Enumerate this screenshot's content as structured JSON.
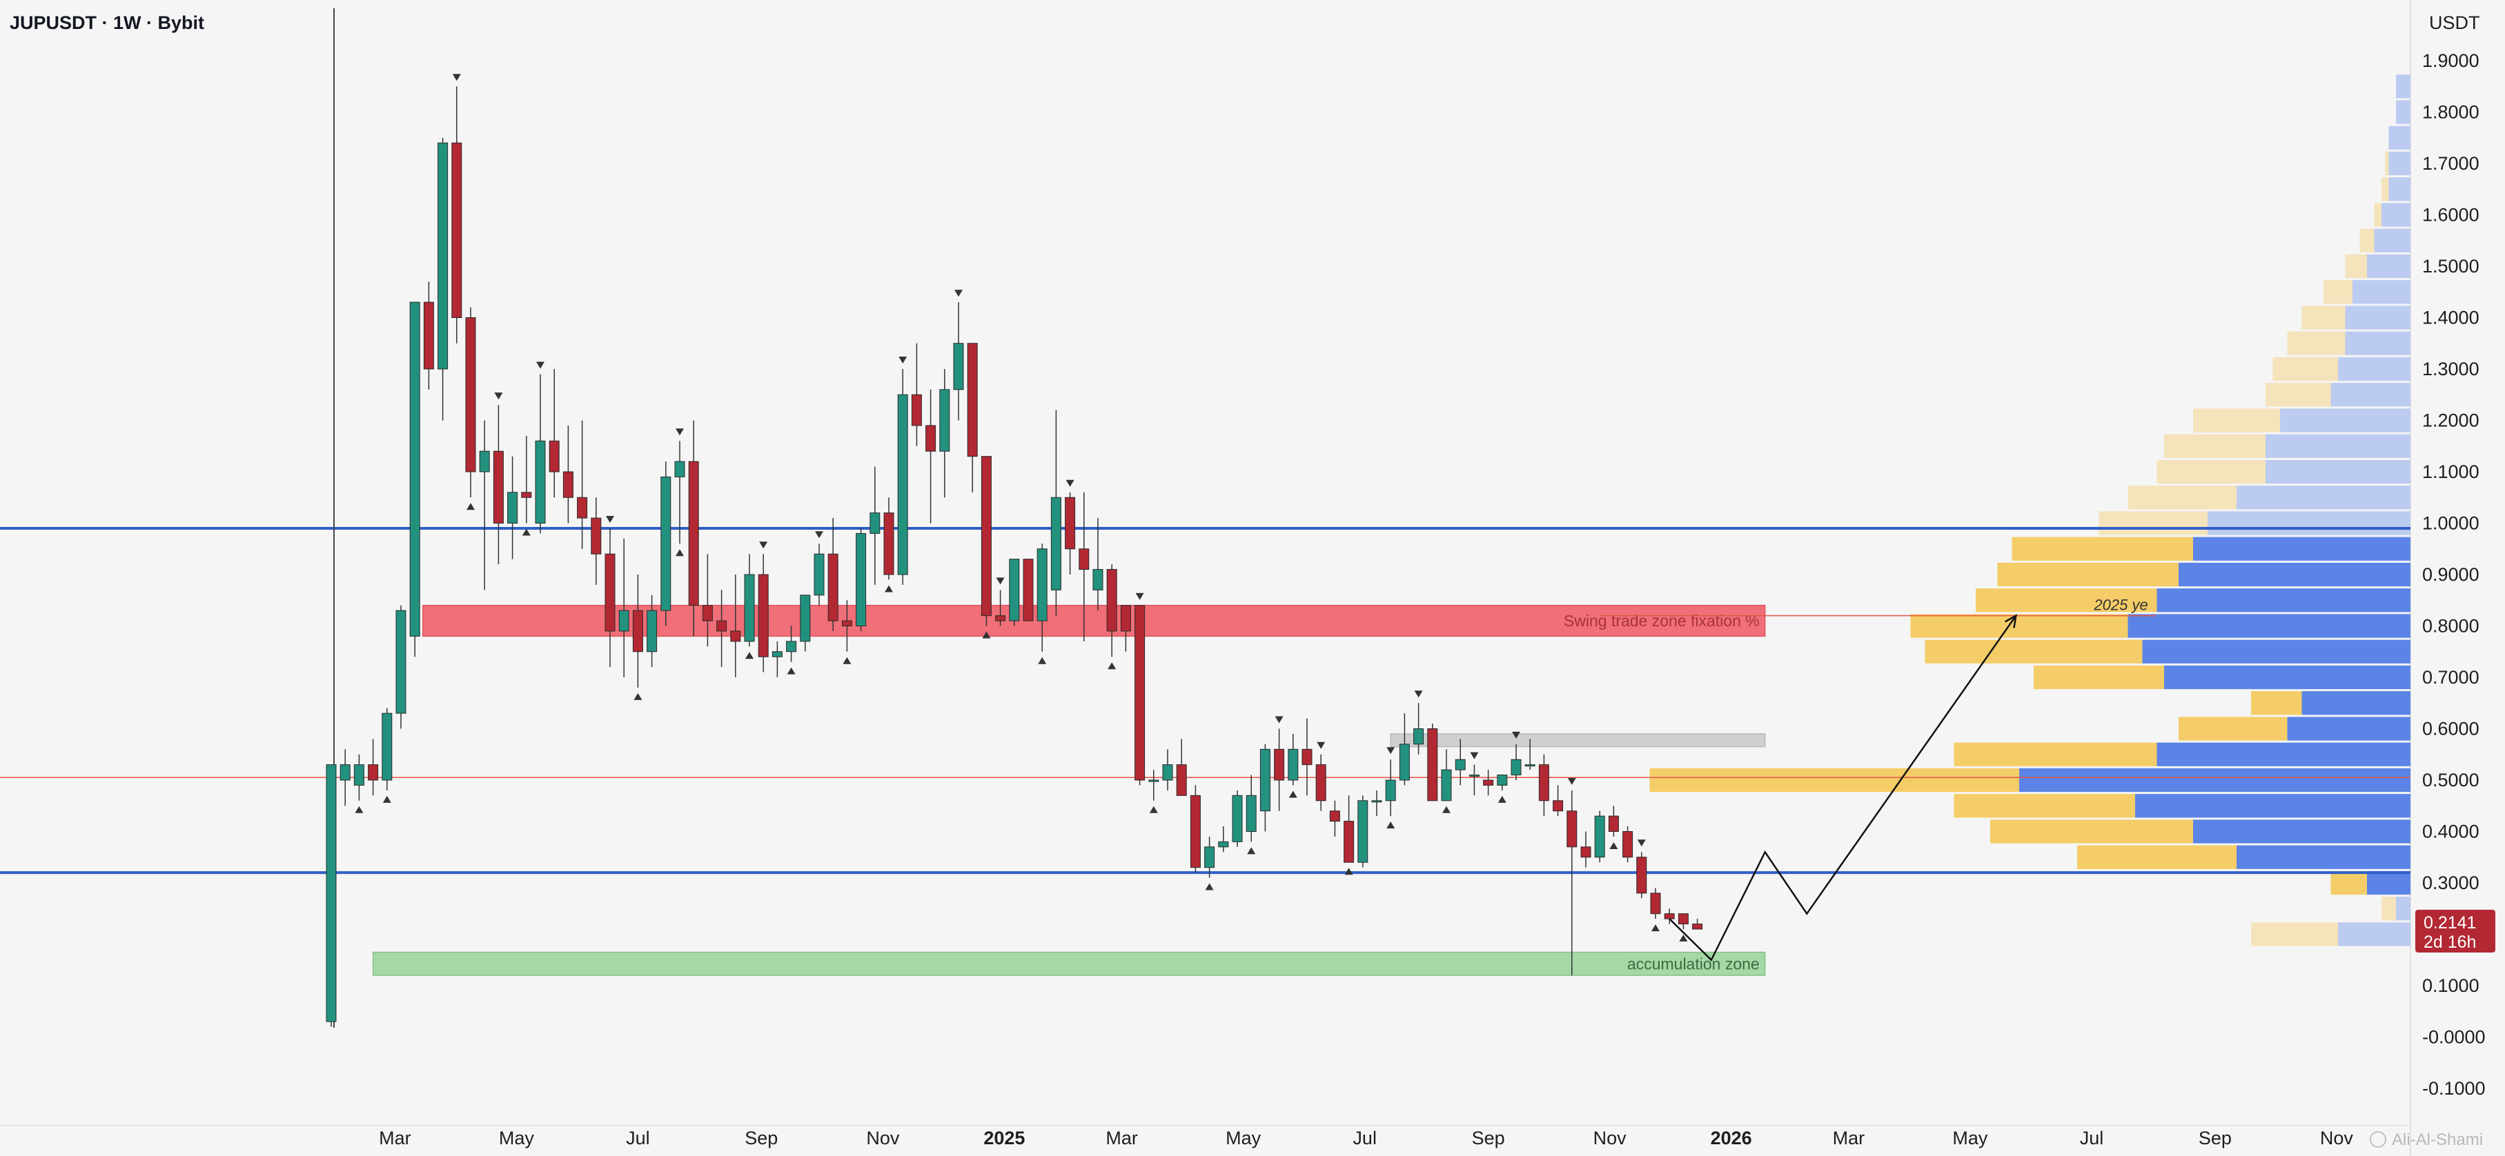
{
  "header": {
    "title": "JUPUSDT · 1W · Bybit",
    "currency": "USDT"
  },
  "colors": {
    "bull": "#22927f",
    "bear": "#b22833",
    "support_line": "#2f5fc9",
    "mid_line": "#e45345",
    "red_zone": "#f06f78",
    "green_zone": "#a4d8a6",
    "gray_zone": "#cfcfd2",
    "vp_yellow": "#f5cd68",
    "vp_yellow_light": "#f5e3bb",
    "vp_blue": "#5b84e6",
    "vp_blue_light": "#bccbf0",
    "price_tag": "#b22833"
  },
  "chart_data": {
    "type": "candlestick",
    "symbol": "JUPUSDT",
    "timeframe": "1W",
    "exchange": "Bybit",
    "x_axis": {
      "start": "2024-01-29",
      "end": "2026-11-30",
      "tick_labels": [
        {
          "label": "Mar",
          "date": "2024-03-01",
          "bold": false
        },
        {
          "label": "May",
          "date": "2024-05-01",
          "bold": false
        },
        {
          "label": "Jul",
          "date": "2024-07-01",
          "bold": false
        },
        {
          "label": "Sep",
          "date": "2024-09-01",
          "bold": false
        },
        {
          "label": "Nov",
          "date": "2024-11-01",
          "bold": false
        },
        {
          "label": "2025",
          "date": "2025-01-01",
          "bold": true
        },
        {
          "label": "Mar",
          "date": "2025-03-01",
          "bold": false
        },
        {
          "label": "May",
          "date": "2025-05-01",
          "bold": false
        },
        {
          "label": "Jul",
          "date": "2025-07-01",
          "bold": false
        },
        {
          "label": "Sep",
          "date": "2025-09-01",
          "bold": false
        },
        {
          "label": "Nov",
          "date": "2025-11-01",
          "bold": false
        },
        {
          "label": "2026",
          "date": "2026-01-01",
          "bold": true
        },
        {
          "label": "Mar",
          "date": "2026-03-01",
          "bold": false
        },
        {
          "label": "May",
          "date": "2026-05-01",
          "bold": false
        },
        {
          "label": "Jul",
          "date": "2026-07-01",
          "bold": false
        },
        {
          "label": "Sep",
          "date": "2026-09-01",
          "bold": false
        },
        {
          "label": "Nov",
          "date": "2026-11-01",
          "bold": false
        }
      ]
    },
    "y_axis": {
      "unit": "USDT",
      "range": [
        -0.12,
        2.05
      ],
      "ticks": [
        "1.9000",
        "1.8000",
        "1.7000",
        "1.6000",
        "1.5000",
        "1.4000",
        "1.3000",
        "1.2000",
        "1.1000",
        "1.0000",
        "0.9000",
        "0.8000",
        "0.7000",
        "0.6000",
        "0.5000",
        "0.4000",
        "0.3000",
        "0.2000",
        "0.1000",
        "-0.0000",
        "-0.1000"
      ]
    },
    "candles": [
      {
        "o": 0.03,
        "h": 0.53,
        "l": 0.02,
        "c": 0.53
      },
      {
        "o": 0.5,
        "h": 0.56,
        "l": 0.45,
        "c": 0.53
      },
      {
        "o": 0.49,
        "h": 0.55,
        "l": 0.46,
        "c": 0.53
      },
      {
        "o": 0.53,
        "h": 0.58,
        "l": 0.47,
        "c": 0.5
      },
      {
        "o": 0.5,
        "h": 0.64,
        "l": 0.48,
        "c": 0.63
      },
      {
        "o": 0.63,
        "h": 0.84,
        "l": 0.6,
        "c": 0.83
      },
      {
        "o": 0.78,
        "h": 1.43,
        "l": 0.74,
        "c": 1.43
      },
      {
        "o": 1.43,
        "h": 1.47,
        "l": 1.26,
        "c": 1.3
      },
      {
        "o": 1.3,
        "h": 1.75,
        "l": 1.2,
        "c": 1.74
      },
      {
        "o": 1.74,
        "h": 1.85,
        "l": 1.35,
        "c": 1.4
      },
      {
        "o": 1.4,
        "h": 1.42,
        "l": 1.05,
        "c": 1.1
      },
      {
        "o": 1.1,
        "h": 1.2,
        "l": 0.87,
        "c": 1.14
      },
      {
        "o": 1.14,
        "h": 1.23,
        "l": 0.92,
        "c": 1.0
      },
      {
        "o": 1.0,
        "h": 1.13,
        "l": 0.93,
        "c": 1.06
      },
      {
        "o": 1.06,
        "h": 1.17,
        "l": 1.0,
        "c": 1.05
      },
      {
        "o": 1.0,
        "h": 1.29,
        "l": 0.98,
        "c": 1.16
      },
      {
        "o": 1.16,
        "h": 1.3,
        "l": 1.05,
        "c": 1.1
      },
      {
        "o": 1.1,
        "h": 1.19,
        "l": 1.0,
        "c": 1.05
      },
      {
        "o": 1.05,
        "h": 1.2,
        "l": 0.95,
        "c": 1.01
      },
      {
        "o": 1.01,
        "h": 1.05,
        "l": 0.88,
        "c": 0.94
      },
      {
        "o": 0.94,
        "h": 0.99,
        "l": 0.72,
        "c": 0.79
      },
      {
        "o": 0.79,
        "h": 0.97,
        "l": 0.7,
        "c": 0.83
      },
      {
        "o": 0.83,
        "h": 0.9,
        "l": 0.68,
        "c": 0.75
      },
      {
        "o": 0.75,
        "h": 0.86,
        "l": 0.72,
        "c": 0.83
      },
      {
        "o": 0.83,
        "h": 1.12,
        "l": 0.8,
        "c": 1.09
      },
      {
        "o": 1.09,
        "h": 1.16,
        "l": 0.96,
        "c": 1.12
      },
      {
        "o": 1.12,
        "h": 1.2,
        "l": 0.78,
        "c": 0.84
      },
      {
        "o": 0.84,
        "h": 0.94,
        "l": 0.76,
        "c": 0.81
      },
      {
        "o": 0.81,
        "h": 0.87,
        "l": 0.72,
        "c": 0.79
      },
      {
        "o": 0.79,
        "h": 0.9,
        "l": 0.7,
        "c": 0.77
      },
      {
        "o": 0.77,
        "h": 0.94,
        "l": 0.76,
        "c": 0.9
      },
      {
        "o": 0.9,
        "h": 0.94,
        "l": 0.71,
        "c": 0.74
      },
      {
        "o": 0.74,
        "h": 0.77,
        "l": 0.7,
        "c": 0.75
      },
      {
        "o": 0.75,
        "h": 0.8,
        "l": 0.73,
        "c": 0.77
      },
      {
        "o": 0.77,
        "h": 0.86,
        "l": 0.75,
        "c": 0.86
      },
      {
        "o": 0.86,
        "h": 0.96,
        "l": 0.84,
        "c": 0.94
      },
      {
        "o": 0.94,
        "h": 1.01,
        "l": 0.79,
        "c": 0.81
      },
      {
        "o": 0.81,
        "h": 0.85,
        "l": 0.75,
        "c": 0.8
      },
      {
        "o": 0.8,
        "h": 0.99,
        "l": 0.79,
        "c": 0.98
      },
      {
        "o": 0.98,
        "h": 1.11,
        "l": 0.88,
        "c": 1.02
      },
      {
        "o": 1.02,
        "h": 1.05,
        "l": 0.89,
        "c": 0.9
      },
      {
        "o": 0.9,
        "h": 1.3,
        "l": 0.88,
        "c": 1.25
      },
      {
        "o": 1.25,
        "h": 1.35,
        "l": 1.15,
        "c": 1.19
      },
      {
        "o": 1.19,
        "h": 1.26,
        "l": 1.0,
        "c": 1.14
      },
      {
        "o": 1.14,
        "h": 1.3,
        "l": 1.05,
        "c": 1.26
      },
      {
        "o": 1.26,
        "h": 1.43,
        "l": 1.2,
        "c": 1.35
      },
      {
        "o": 1.35,
        "h": 1.34,
        "l": 1.06,
        "c": 1.13
      },
      {
        "o": 1.13,
        "h": 1.13,
        "l": 0.8,
        "c": 0.82
      },
      {
        "o": 0.82,
        "h": 0.87,
        "l": 0.8,
        "c": 0.81
      },
      {
        "o": 0.81,
        "h": 0.93,
        "l": 0.8,
        "c": 0.93
      },
      {
        "o": 0.93,
        "h": 0.93,
        "l": 0.81,
        "c": 0.81
      },
      {
        "o": 0.81,
        "h": 0.96,
        "l": 0.75,
        "c": 0.95
      },
      {
        "o": 0.87,
        "h": 1.22,
        "l": 0.82,
        "c": 1.05
      },
      {
        "o": 1.05,
        "h": 1.06,
        "l": 0.9,
        "c": 0.95
      },
      {
        "o": 0.95,
        "h": 1.06,
        "l": 0.77,
        "c": 0.91
      },
      {
        "o": 0.87,
        "h": 1.01,
        "l": 0.83,
        "c": 0.91
      },
      {
        "o": 0.91,
        "h": 0.92,
        "l": 0.74,
        "c": 0.79
      },
      {
        "o": 0.84,
        "h": 0.84,
        "l": 0.75,
        "c": 0.79
      },
      {
        "o": 0.84,
        "h": 0.84,
        "l": 0.49,
        "c": 0.5
      },
      {
        "o": 0.5,
        "h": 0.52,
        "l": 0.46,
        "c": 0.5
      },
      {
        "o": 0.5,
        "h": 0.56,
        "l": 0.48,
        "c": 0.53
      },
      {
        "o": 0.53,
        "h": 0.58,
        "l": 0.47,
        "c": 0.47
      },
      {
        "o": 0.47,
        "h": 0.49,
        "l": 0.32,
        "c": 0.33
      },
      {
        "o": 0.33,
        "h": 0.39,
        "l": 0.31,
        "c": 0.37
      },
      {
        "o": 0.37,
        "h": 0.41,
        "l": 0.36,
        "c": 0.38
      },
      {
        "o": 0.38,
        "h": 0.48,
        "l": 0.37,
        "c": 0.47
      },
      {
        "o": 0.4,
        "h": 0.51,
        "l": 0.38,
        "c": 0.47
      },
      {
        "o": 0.44,
        "h": 0.57,
        "l": 0.4,
        "c": 0.56
      },
      {
        "o": 0.56,
        "h": 0.6,
        "l": 0.44,
        "c": 0.5
      },
      {
        "o": 0.5,
        "h": 0.59,
        "l": 0.49,
        "c": 0.56
      },
      {
        "o": 0.56,
        "h": 0.62,
        "l": 0.47,
        "c": 0.53
      },
      {
        "o": 0.53,
        "h": 0.55,
        "l": 0.44,
        "c": 0.46
      },
      {
        "o": 0.44,
        "h": 0.46,
        "l": 0.39,
        "c": 0.42
      },
      {
        "o": 0.42,
        "h": 0.47,
        "l": 0.34,
        "c": 0.34
      },
      {
        "o": 0.34,
        "h": 0.47,
        "l": 0.33,
        "c": 0.46
      },
      {
        "o": 0.46,
        "h": 0.48,
        "l": 0.43,
        "c": 0.46
      },
      {
        "o": 0.46,
        "h": 0.54,
        "l": 0.43,
        "c": 0.5
      },
      {
        "o": 0.5,
        "h": 0.63,
        "l": 0.49,
        "c": 0.57
      },
      {
        "o": 0.57,
        "h": 0.65,
        "l": 0.55,
        "c": 0.6
      },
      {
        "o": 0.6,
        "h": 0.61,
        "l": 0.46,
        "c": 0.46
      },
      {
        "o": 0.46,
        "h": 0.56,
        "l": 0.46,
        "c": 0.52
      },
      {
        "o": 0.52,
        "h": 0.58,
        "l": 0.49,
        "c": 0.54
      },
      {
        "o": 0.51,
        "h": 0.53,
        "l": 0.47,
        "c": 0.51
      },
      {
        "o": 0.5,
        "h": 0.52,
        "l": 0.47,
        "c": 0.49
      },
      {
        "o": 0.49,
        "h": 0.51,
        "l": 0.48,
        "c": 0.51
      },
      {
        "o": 0.51,
        "h": 0.57,
        "l": 0.5,
        "c": 0.54
      },
      {
        "o": 0.53,
        "h": 0.58,
        "l": 0.52,
        "c": 0.53
      },
      {
        "o": 0.53,
        "h": 0.55,
        "l": 0.43,
        "c": 0.46
      },
      {
        "o": 0.46,
        "h": 0.49,
        "l": 0.43,
        "c": 0.44
      },
      {
        "o": 0.44,
        "h": 0.48,
        "l": 0.12,
        "c": 0.37
      },
      {
        "o": 0.37,
        "h": 0.4,
        "l": 0.33,
        "c": 0.35
      },
      {
        "o": 0.35,
        "h": 0.44,
        "l": 0.34,
        "c": 0.43
      },
      {
        "o": 0.43,
        "h": 0.45,
        "l": 0.39,
        "c": 0.4
      },
      {
        "o": 0.4,
        "h": 0.41,
        "l": 0.34,
        "c": 0.35
      },
      {
        "o": 0.35,
        "h": 0.36,
        "l": 0.27,
        "c": 0.28
      },
      {
        "o": 0.28,
        "h": 0.29,
        "l": 0.23,
        "c": 0.24
      },
      {
        "o": 0.24,
        "h": 0.25,
        "l": 0.22,
        "c": 0.23
      },
      {
        "o": 0.24,
        "h": 0.24,
        "l": 0.21,
        "c": 0.22
      },
      {
        "o": 0.22,
        "h": 0.23,
        "l": 0.21,
        "c": 0.21
      }
    ],
    "pivot_markers": {
      "highs": [
        9,
        12,
        15,
        20,
        25,
        31,
        35,
        41,
        45,
        48,
        53,
        58,
        68,
        71,
        76,
        78,
        82,
        85,
        89,
        94
      ],
      "lows": [
        2,
        4,
        10,
        14,
        22,
        25,
        30,
        33,
        37,
        40,
        47,
        51,
        56,
        59,
        63,
        66,
        69,
        73,
        76,
        80,
        84,
        92,
        95,
        97
      ]
    },
    "levels": [
      {
        "name": "blue-upper",
        "price": 0.99,
        "style": "blue"
      },
      {
        "name": "blue-lower",
        "price": 0.32,
        "style": "blue"
      },
      {
        "name": "mid-red",
        "price": 0.505,
        "style": "thin-red"
      }
    ],
    "zones": [
      {
        "name": "swing-trade-zone",
        "label": "Swing trade zone fixation %",
        "from_date": "2024-03-15",
        "to_date": "2026-01-18",
        "low": 0.78,
        "high": 0.84,
        "color": "red"
      },
      {
        "name": "resistance-box",
        "label": "",
        "from_date": "2025-07-14",
        "to_date": "2026-01-18",
        "low": 0.565,
        "high": 0.59,
        "color": "gray"
      },
      {
        "name": "accumulation-zone",
        "label": "accumulation zone",
        "from_date": "2024-02-19",
        "to_date": "2026-01-18",
        "low": 0.12,
        "high": 0.165,
        "color": "green"
      }
    ],
    "target_line": {
      "price": 0.82,
      "from_date": "2025-10-27",
      "to_date": "2026-06-01",
      "label": "2025 ye"
    },
    "projection_path": [
      {
        "date": "2025-12-01",
        "price": 0.23
      },
      {
        "date": "2025-12-22",
        "price": 0.15
      },
      {
        "date": "2026-01-18",
        "price": 0.36
      },
      {
        "date": "2026-02-08",
        "price": 0.24
      },
      {
        "date": "2026-05-24",
        "price": 0.82
      }
    ],
    "volume_profile": {
      "bins": [
        {
          "price": 1.85,
          "yellow": 0.0,
          "blue": 0.02,
          "light": true
        },
        {
          "price": 1.8,
          "yellow": 0.0,
          "blue": 0.02,
          "light": true
        },
        {
          "price": 1.75,
          "yellow": 0.0,
          "blue": 0.03,
          "light": true
        },
        {
          "price": 1.7,
          "yellow": 0.005,
          "blue": 0.03,
          "light": true
        },
        {
          "price": 1.65,
          "yellow": 0.01,
          "blue": 0.03,
          "light": true
        },
        {
          "price": 1.6,
          "yellow": 0.01,
          "blue": 0.04,
          "light": true
        },
        {
          "price": 1.55,
          "yellow": 0.02,
          "blue": 0.05,
          "light": true
        },
        {
          "price": 1.5,
          "yellow": 0.03,
          "blue": 0.06,
          "light": true
        },
        {
          "price": 1.45,
          "yellow": 0.04,
          "blue": 0.08,
          "light": true
        },
        {
          "price": 1.4,
          "yellow": 0.06,
          "blue": 0.09,
          "light": true
        },
        {
          "price": 1.35,
          "yellow": 0.08,
          "blue": 0.09,
          "light": true
        },
        {
          "price": 1.3,
          "yellow": 0.09,
          "blue": 0.1,
          "light": true
        },
        {
          "price": 1.25,
          "yellow": 0.09,
          "blue": 0.11,
          "light": true
        },
        {
          "price": 1.2,
          "yellow": 0.12,
          "blue": 0.18,
          "light": true
        },
        {
          "price": 1.15,
          "yellow": 0.14,
          "blue": 0.2,
          "light": true
        },
        {
          "price": 1.1,
          "yellow": 0.15,
          "blue": 0.2,
          "light": true
        },
        {
          "price": 1.05,
          "yellow": 0.15,
          "blue": 0.24,
          "light": true
        },
        {
          "price": 1.0,
          "yellow": 0.15,
          "blue": 0.28,
          "light": true
        },
        {
          "price": 0.95,
          "yellow": 0.25,
          "blue": 0.3,
          "light": false
        },
        {
          "price": 0.9,
          "yellow": 0.25,
          "blue": 0.32,
          "light": false
        },
        {
          "price": 0.85,
          "yellow": 0.25,
          "blue": 0.35,
          "light": false
        },
        {
          "price": 0.8,
          "yellow": 0.3,
          "blue": 0.39,
          "light": false
        },
        {
          "price": 0.75,
          "yellow": 0.3,
          "blue": 0.37,
          "light": false
        },
        {
          "price": 0.7,
          "yellow": 0.18,
          "blue": 0.34,
          "light": false
        },
        {
          "price": 0.65,
          "yellow": 0.07,
          "blue": 0.15,
          "light": false
        },
        {
          "price": 0.6,
          "yellow": 0.15,
          "blue": 0.17,
          "light": false
        },
        {
          "price": 0.55,
          "yellow": 0.28,
          "blue": 0.35,
          "light": false
        },
        {
          "price": 0.5,
          "yellow": 0.51,
          "blue": 0.54,
          "light": false
        },
        {
          "price": 0.45,
          "yellow": 0.25,
          "blue": 0.38,
          "light": false
        },
        {
          "price": 0.4,
          "yellow": 0.28,
          "blue": 0.3,
          "light": false
        },
        {
          "price": 0.35,
          "yellow": 0.22,
          "blue": 0.24,
          "light": false
        },
        {
          "price": 0.3,
          "yellow": 0.05,
          "blue": 0.06,
          "light": false
        },
        {
          "price": 0.25,
          "yellow": 0.02,
          "blue": 0.02,
          "light": true
        },
        {
          "price": 0.2,
          "yellow": 0.12,
          "blue": 0.1,
          "light": true
        }
      ]
    },
    "last_price": {
      "value": "0.2141",
      "countdown": "2d 16h",
      "price": 0.2141
    }
  },
  "watermark": "Ali-Al-Shami"
}
